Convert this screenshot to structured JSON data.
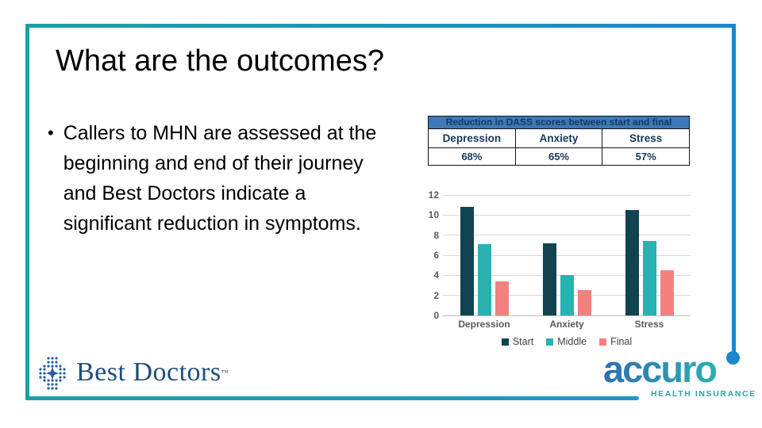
{
  "slide": {
    "title": "What are the outcomes?",
    "bullet_glyph": "•",
    "bullet_text": "Callers to MHN are assessed at the beginning and end of their journey and Best Doctors indicate a significant reduction in symptoms."
  },
  "table": {
    "title": "Reduction in DASS scores between start and final",
    "columns": [
      "Depression",
      "Anxiety",
      "Stress"
    ],
    "values": [
      "68%",
      "65%",
      "57%"
    ],
    "header_bg": "#3e79b6",
    "text_color": "#17375e"
  },
  "chart_data": {
    "type": "bar",
    "title": "",
    "categories": [
      "Depression",
      "Anxiety",
      "Stress"
    ],
    "series": [
      {
        "name": "Start",
        "color": "#114350",
        "values": [
          10.8,
          7.2,
          10.5
        ]
      },
      {
        "name": "Middle",
        "color": "#2ab1b1",
        "values": [
          7.1,
          4.0,
          7.4
        ]
      },
      {
        "name": "Final",
        "color": "#f58080",
        "values": [
          3.4,
          2.5,
          4.5
        ]
      }
    ],
    "xlabel": "",
    "ylabel": "",
    "ylim": [
      0,
      12
    ],
    "yticks": [
      0,
      2,
      4,
      6,
      8,
      10,
      12
    ],
    "grid": true,
    "legend_position": "bottom"
  },
  "logos": {
    "best_doctors": {
      "text": "Best Doctors",
      "tm": "™"
    },
    "accuro": {
      "text": "accuro",
      "subtext": "HEALTH INSURANCE"
    }
  },
  "colors": {
    "frame_teal": "#1fa0a5",
    "frame_blue": "#1d87c9",
    "navy_text": "#17375e",
    "axis_gray": "#595959",
    "gridline": "#d9d9d9",
    "best_doctors_navy": "#1f4e79",
    "accuro_teal": "#2aa8a8"
  }
}
